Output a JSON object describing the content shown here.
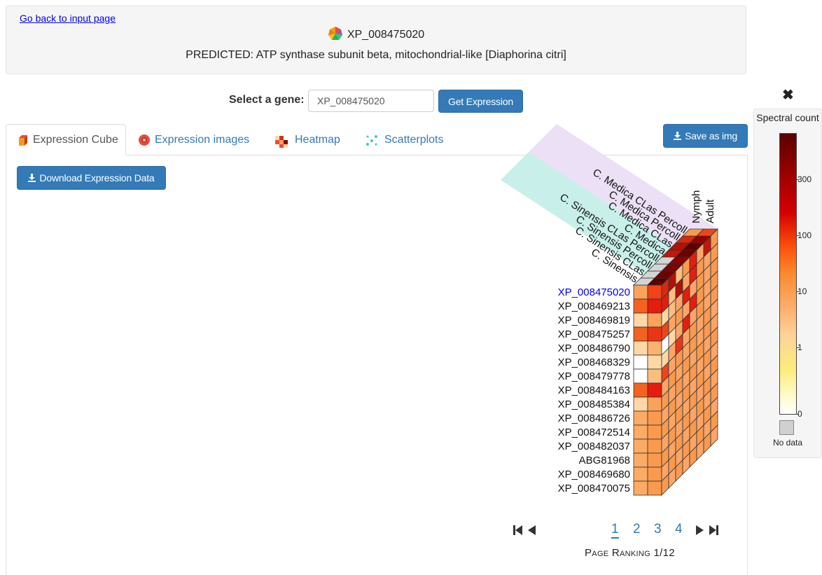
{
  "header": {
    "back_link": "Go back to input page",
    "gene_id": "XP_008475020",
    "description": "PREDICTED: ATP synthase subunit beta, mitochondrial-like [Diaphorina citri]"
  },
  "selector": {
    "label": "Select a gene:",
    "value": "XP_008475020",
    "button": "Get Expression"
  },
  "tabs": [
    {
      "label": "Expression Cube",
      "icon": "cube-icon",
      "active": true
    },
    {
      "label": "Expression images",
      "icon": "flower-icon",
      "active": false
    },
    {
      "label": "Heatmap",
      "icon": "heatmap-icon",
      "active": false
    },
    {
      "label": "Scatterplots",
      "icon": "scatter-icon",
      "active": false
    }
  ],
  "save_button": "Save as img",
  "download_button": "Download Expression Data",
  "cube": {
    "stages": [
      "Nymph",
      "Adult"
    ],
    "samples": [
      "C. Sinensis",
      "C. Sinensis CLas",
      "C. Sinensis Percoll",
      "C. Sinensis CLas Percoll",
      "C. Medica",
      "C. Medica CLas",
      "C. Medica Percoll",
      "C. Medica CLas Percoll"
    ],
    "genes": [
      "XP_008475020",
      "XP_008469213",
      "XP_008469819",
      "XP_008475257",
      "XP_008486790",
      "XP_008468329",
      "XP_008479778",
      "XP_008484163",
      "XP_008485384",
      "XP_008486726",
      "XP_008472514",
      "XP_008482037",
      "ABG81968",
      "XP_008469680",
      "XP_008470075"
    ],
    "selected_gene": "XP_008475020",
    "front_colors": [
      [
        "#fba25a",
        "#f04418"
      ],
      [
        "#f5611f",
        "#e41d0e"
      ],
      [
        "#fdd8a6",
        "#fba25a"
      ],
      [
        "#f5611f",
        "#ec3416"
      ],
      [
        "#fdd8a6",
        "#fbb26e"
      ],
      [
        "#ffffff",
        "#fdd8a6"
      ],
      [
        "#ffffff",
        "#fcbd80"
      ],
      [
        "#f5611f",
        "#e41d0e"
      ],
      [
        "#fdd8a6",
        "#fba25a"
      ],
      [
        "#fbab64",
        "#fa9a4e"
      ],
      [
        "#fbab64",
        "#fa9a4e"
      ],
      [
        "#fbab64",
        "#fa9a4e"
      ],
      [
        "#fbab64",
        "#fa9a4e"
      ],
      [
        "#fbab64",
        "#fa9a4e"
      ],
      [
        "#fbab64",
        "#fa9a4e"
      ]
    ],
    "side_colors": [
      [
        "#d62a0e",
        "#b01208",
        "#fcbd80",
        "#fa9a4e",
        "#e41d0e",
        "#fca566",
        "#c5160b",
        "#fa9a4e"
      ],
      [
        "#e41d0e",
        "#fcbd80",
        "#b01208",
        "#fca566",
        "#e41d0e",
        "#fa9a4e",
        "#fca566",
        "#fa9a4e"
      ],
      [
        "#fdd8a6",
        "#fcbd80",
        "#fca566",
        "#e41d0e",
        "#fca566",
        "#fa9a4e",
        "#fca566",
        "#fa9a4e"
      ],
      [
        "#f04418",
        "#fca566",
        "#fa9a4e",
        "#fca566",
        "#e41d0e",
        "#fa9a4e",
        "#fca566",
        "#fa9a4e"
      ],
      [
        "#ffffff",
        "#fdd8a6",
        "#fca566",
        "#e41d0e",
        "#fca566",
        "#fa9a4e",
        "#fca566",
        "#fa9a4e"
      ],
      [
        "#fdd8a6",
        "#fca566",
        "#ec3416",
        "#fca566",
        "#fa9a4e",
        "#fca566",
        "#fa9a4e",
        "#fca566"
      ],
      [
        "#f04418",
        "#fca566",
        "#fa9a4e",
        "#fca566",
        "#fa9a4e",
        "#fca566",
        "#fa9a4e",
        "#fca566"
      ],
      [
        "#fca566",
        "#fa9a4e",
        "#fca566",
        "#fa9a4e",
        "#fca566",
        "#fa9a4e",
        "#fca566",
        "#fa9a4e"
      ],
      [
        "#fa9a4e",
        "#fca566",
        "#fa9a4e",
        "#fca566",
        "#fa9a4e",
        "#fca566",
        "#fa9a4e",
        "#fca566"
      ],
      [
        "#fca566",
        "#fa9a4e",
        "#fca566",
        "#fa9a4e",
        "#fca566",
        "#fa9a4e",
        "#fca566",
        "#fa9a4e"
      ],
      [
        "#fa9a4e",
        "#fca566",
        "#fa9a4e",
        "#fca566",
        "#fa9a4e",
        "#fca566",
        "#fa9a4e",
        "#fca566"
      ],
      [
        "#fca566",
        "#fa9a4e",
        "#fca566",
        "#fa9a4e",
        "#fca566",
        "#fa9a4e",
        "#fca566",
        "#fa9a4e"
      ],
      [
        "#fa9a4e",
        "#fca566",
        "#fa9a4e",
        "#fca566",
        "#fa9a4e",
        "#fca566",
        "#fa9a4e",
        "#fca566"
      ],
      [
        "#fca566",
        "#fa9a4e",
        "#fca566",
        "#fa9a4e",
        "#fca566",
        "#fa9a4e",
        "#fca566",
        "#fa9a4e"
      ],
      [
        "#fa9a4e",
        "#fca566",
        "#fa9a4e",
        "#fca566",
        "#fa9a4e",
        "#fca566",
        "#fa9a4e",
        "#fca566"
      ]
    ],
    "top_colors": [
      [
        "#d4d4d4",
        "#5b0000"
      ],
      [
        "#d4d4d4",
        "#6f0000"
      ],
      [
        "#d4d4d4",
        "#7d0000"
      ],
      [
        "#d4d4d4",
        "#8a0000"
      ],
      [
        "#c5160b",
        "#6f0000"
      ],
      [
        "#b01208",
        "#5b0000"
      ],
      [
        "#d62a0e",
        "#9a0000"
      ],
      [
        "#fa9a4e",
        "#f04418"
      ]
    ]
  },
  "pagination": {
    "pages": [
      "1",
      "2",
      "3",
      "4"
    ],
    "current": "1",
    "ranking": "Page Ranking 1/12"
  },
  "legend": {
    "title": "Spectral count",
    "ticks": [
      "300",
      "100",
      "10",
      "1",
      "0"
    ],
    "no_data": "No data",
    "close_icon": "close-icon"
  }
}
